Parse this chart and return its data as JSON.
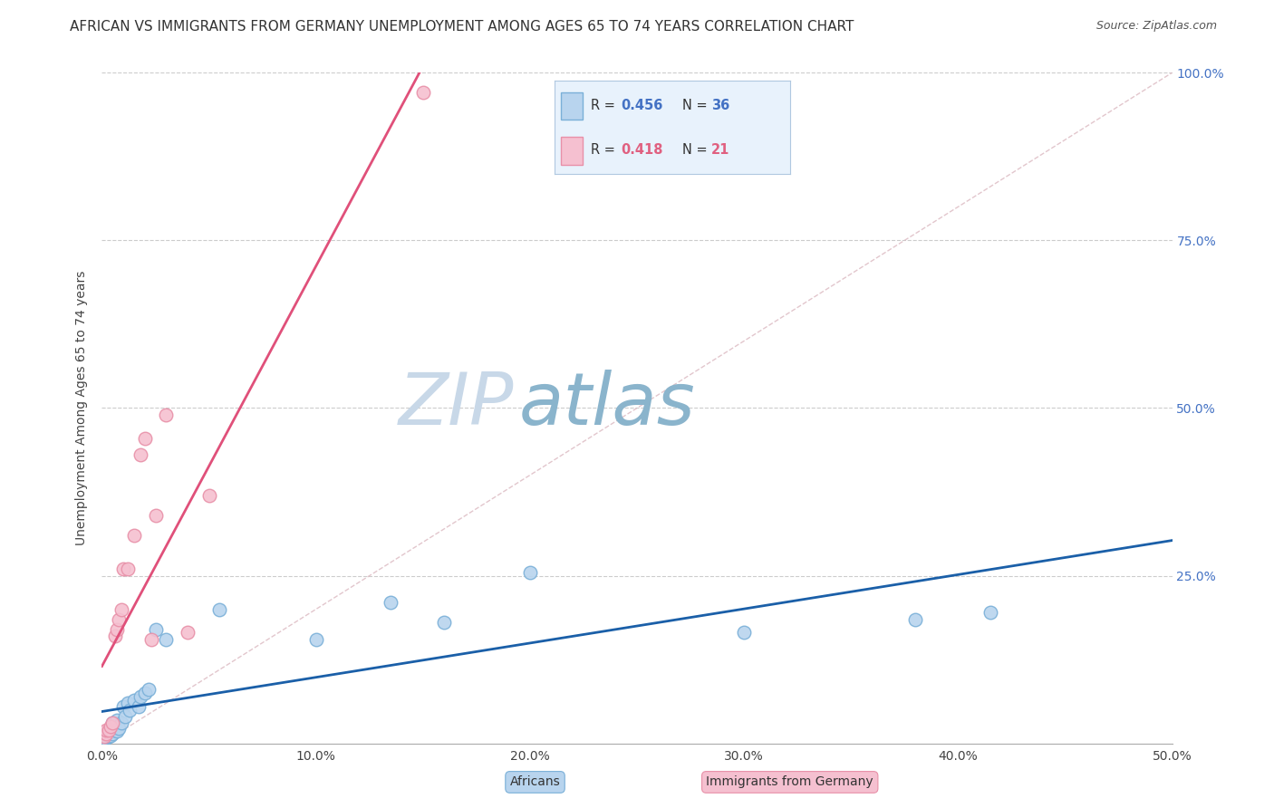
{
  "title": "AFRICAN VS IMMIGRANTS FROM GERMANY UNEMPLOYMENT AMONG AGES 65 TO 74 YEARS CORRELATION CHART",
  "source": "Source: ZipAtlas.com",
  "ylabel": "Unemployment Among Ages 65 to 74 years",
  "xlim": [
    0.0,
    0.5
  ],
  "ylim": [
    0.0,
    1.0
  ],
  "xtick_labels": [
    "0.0%",
    "",
    "",
    "",
    "",
    "",
    "",
    "",
    "",
    "",
    "10.0%",
    "",
    "",
    "",
    "",
    "",
    "",
    "",
    "",
    "",
    "20.0%",
    "",
    "",
    "",
    "",
    "",
    "",
    "",
    "",
    "",
    "30.0%",
    "",
    "",
    "",
    "",
    "",
    "",
    "",
    "",
    "",
    "40.0%",
    "",
    "",
    "",
    "",
    "",
    "",
    "",
    "",
    "",
    "50.0%"
  ],
  "xtick_values": [
    0.0,
    0.01,
    0.02,
    0.03,
    0.04,
    0.05,
    0.06,
    0.07,
    0.08,
    0.09,
    0.1,
    0.11,
    0.12,
    0.13,
    0.14,
    0.15,
    0.16,
    0.17,
    0.18,
    0.19,
    0.2,
    0.21,
    0.22,
    0.23,
    0.24,
    0.25,
    0.26,
    0.27,
    0.28,
    0.29,
    0.3,
    0.31,
    0.32,
    0.33,
    0.34,
    0.35,
    0.36,
    0.37,
    0.38,
    0.39,
    0.4,
    0.41,
    0.42,
    0.43,
    0.44,
    0.45,
    0.46,
    0.47,
    0.48,
    0.49,
    0.5
  ],
  "ytick_labels": [
    "25.0%",
    "50.0%",
    "75.0%",
    "100.0%"
  ],
  "ytick_values": [
    0.25,
    0.5,
    0.75,
    1.0
  ],
  "africans_color": "#b8d4ee",
  "africans_edge_color": "#7ab0d8",
  "germany_color": "#f5c0d0",
  "germany_edge_color": "#e890a8",
  "trendline_africans_color": "#1a5fa8",
  "trendline_germany_color": "#e0507a",
  "diagonal_color": "#dbb8c0",
  "legend_box_facecolor": "#e8f2fc",
  "legend_box_edgecolor": "#b0c8e0",
  "africans_R": 0.456,
  "africans_N": 36,
  "germany_R": 0.418,
  "germany_N": 21,
  "africans_R_color": "#4472c4",
  "africans_N_color": "#4472c4",
  "germany_R_color": "#e06080",
  "germany_N_color": "#e06080",
  "africans_x": [
    0.001,
    0.001,
    0.002,
    0.002,
    0.003,
    0.003,
    0.004,
    0.004,
    0.005,
    0.005,
    0.005,
    0.006,
    0.006,
    0.007,
    0.007,
    0.008,
    0.009,
    0.01,
    0.011,
    0.012,
    0.013,
    0.015,
    0.017,
    0.018,
    0.02,
    0.022,
    0.025,
    0.03,
    0.055,
    0.1,
    0.135,
    0.16,
    0.2,
    0.3,
    0.38,
    0.415
  ],
  "africans_y": [
    0.005,
    0.008,
    0.01,
    0.015,
    0.01,
    0.018,
    0.012,
    0.02,
    0.015,
    0.025,
    0.03,
    0.02,
    0.025,
    0.018,
    0.035,
    0.022,
    0.03,
    0.055,
    0.04,
    0.06,
    0.05,
    0.065,
    0.055,
    0.07,
    0.075,
    0.08,
    0.17,
    0.155,
    0.2,
    0.155,
    0.21,
    0.18,
    0.255,
    0.165,
    0.185,
    0.195
  ],
  "germany_x": [
    0.001,
    0.002,
    0.002,
    0.003,
    0.004,
    0.005,
    0.006,
    0.007,
    0.008,
    0.009,
    0.01,
    0.012,
    0.015,
    0.018,
    0.02,
    0.023,
    0.025,
    0.03,
    0.04,
    0.05,
    0.15
  ],
  "germany_y": [
    0.01,
    0.015,
    0.02,
    0.02,
    0.025,
    0.03,
    0.16,
    0.17,
    0.185,
    0.2,
    0.26,
    0.26,
    0.31,
    0.43,
    0.455,
    0.155,
    0.34,
    0.49,
    0.165,
    0.37,
    0.97
  ],
  "watermark_zip_color": "#c8d8e8",
  "watermark_atlas_color": "#8ab0cc",
  "background_color": "#ffffff",
  "grid_color": "#cccccc",
  "title_fontsize": 11,
  "source_fontsize": 9,
  "axis_label_fontsize": 10,
  "tick_fontsize": 10,
  "right_tick_color": "#4472c4"
}
